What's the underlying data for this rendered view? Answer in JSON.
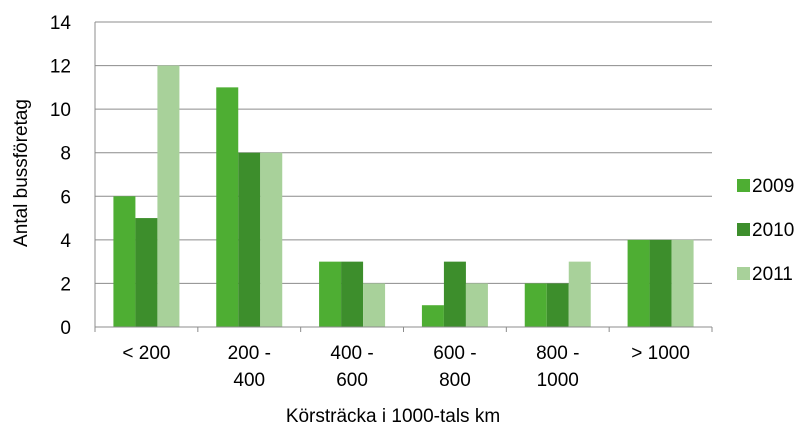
{
  "chart_data": {
    "type": "bar",
    "title": "",
    "xlabel": "Körsträcka i 1000-tals km",
    "ylabel": "Antal bussföretag",
    "ylim": [
      0,
      14
    ],
    "yticks": [
      0,
      2,
      4,
      6,
      8,
      10,
      12,
      14
    ],
    "grid": true,
    "legend_position": "right",
    "categories": [
      [
        "< 200"
      ],
      [
        "200 -",
        "400"
      ],
      [
        "400 -",
        "600"
      ],
      [
        "600 -",
        "800"
      ],
      [
        "800 -",
        "1000"
      ],
      [
        "> 1000"
      ]
    ],
    "series": [
      {
        "name": "2009",
        "color": "#4eae33",
        "values": [
          6,
          11,
          3,
          1,
          2,
          4
        ]
      },
      {
        "name": "2010",
        "color": "#3d8e2c",
        "values": [
          5,
          8,
          3,
          3,
          2,
          4
        ]
      },
      {
        "name": "2011",
        "color": "#a8d19a",
        "values": [
          12,
          8,
          2,
          2,
          3,
          4
        ]
      }
    ]
  }
}
